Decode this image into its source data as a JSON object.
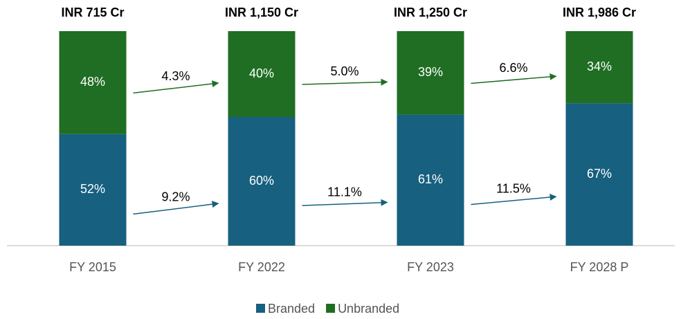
{
  "chart_data": {
    "type": "stacked_bar_100",
    "categories": [
      "FY 2015",
      "FY 2022",
      "FY 2023",
      "FY 2028 P"
    ],
    "series": [
      {
        "name": "Branded",
        "color": "#17607f",
        "values": [
          52,
          60,
          61,
          67
        ],
        "value_labels": [
          "52%",
          "60%",
          "61%",
          "67%"
        ]
      },
      {
        "name": "Unbranded",
        "color": "#1f6e23",
        "values": [
          48,
          40,
          39,
          34
        ],
        "value_labels": [
          "48%",
          "40%",
          "39%",
          "34%"
        ]
      }
    ],
    "totals": [
      "INR 715 Cr",
      "INR 1,150 Cr",
      "INR 1,250 Cr",
      "INR 1,986 Cr"
    ],
    "growth_labels": [
      [
        "9.2%",
        "11.1%",
        "11.5%"
      ],
      [
        "4.3%",
        "5.0%",
        "6.6%"
      ]
    ],
    "legend": "bottom"
  }
}
